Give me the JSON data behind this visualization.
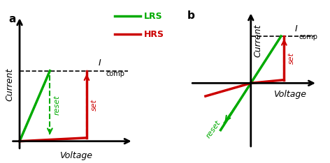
{
  "fig_width": 4.72,
  "fig_height": 2.34,
  "dpi": 100,
  "green_color": "#00AA00",
  "red_color": "#CC0000",
  "panel_a_label": "a",
  "panel_b_label": "b",
  "lrs_label": "LRS",
  "hrs_label": "HRS",
  "xlabel": "Voltage",
  "ylabel": "Current",
  "set_label": "set",
  "reset_label": "reset"
}
